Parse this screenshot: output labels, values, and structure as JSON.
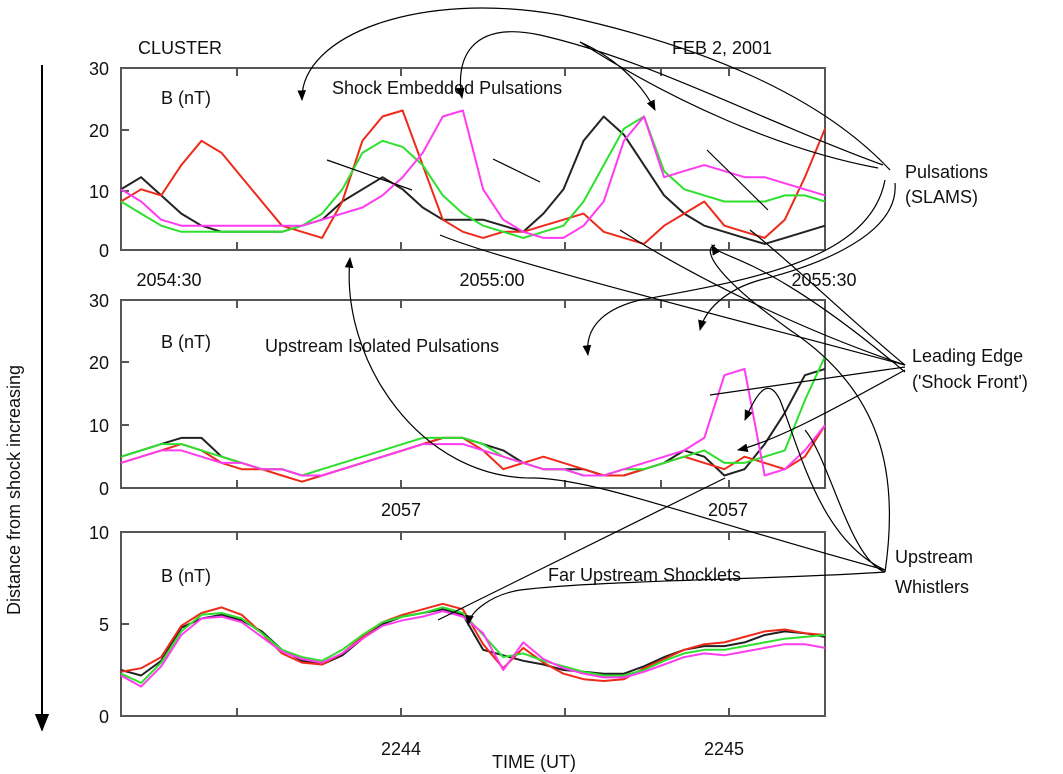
{
  "header": {
    "spacecraft": "CLUSTER",
    "date": "FEB 2, 2001"
  },
  "y_axis_label": "Distance from shock increasing",
  "x_axis_label": "TIME  (UT)",
  "colors": {
    "black": "#222222",
    "red": "#ee2a1a",
    "green": "#2ee02e",
    "magenta": "#ff3cf0"
  },
  "annotations": {
    "pulsations": [
      "Pulsations",
      "(SLAMS)"
    ],
    "leading_edge": [
      "Leading Edge",
      "('Shock Front')"
    ],
    "whistlers": [
      "Upstream",
      "Whistlers"
    ]
  },
  "chart_data": [
    {
      "type": "line",
      "panel_label": "B  (nT)",
      "title": "Shock Embedded Pulsations",
      "ylim": [
        0,
        30
      ],
      "yticks": [
        "30",
        "20",
        "10",
        "0"
      ],
      "xticklabels": [
        "2054:30",
        "2055:00",
        "2055:30"
      ],
      "x": [
        0,
        2,
        4,
        6,
        8,
        10,
        12,
        14,
        16,
        18,
        20,
        22,
        24,
        26,
        28,
        30,
        32,
        34,
        36,
        38,
        40,
        42,
        44,
        46,
        48,
        50,
        52,
        54,
        56,
        58,
        60,
        62,
        64,
        66,
        68,
        70
      ],
      "series": [
        {
          "color": "black",
          "values": [
            10,
            12,
            9,
            6,
            4,
            3,
            3,
            3,
            3,
            4,
            5,
            8,
            10,
            12,
            10,
            7,
            5,
            5,
            5,
            4,
            3,
            6,
            10,
            18,
            22,
            19,
            14,
            9,
            6,
            4,
            3,
            2,
            1,
            2,
            3,
            4
          ]
        },
        {
          "color": "red",
          "values": [
            8,
            10,
            9,
            14,
            18,
            16,
            12,
            8,
            4,
            3,
            2,
            8,
            18,
            22,
            23,
            14,
            5,
            3,
            2,
            3,
            3,
            4,
            5,
            6,
            3,
            2,
            1,
            4,
            6,
            8,
            4,
            3,
            2,
            5,
            12,
            20
          ]
        },
        {
          "color": "green",
          "values": [
            8,
            6,
            4,
            3,
            3,
            3,
            3,
            3,
            3,
            4,
            6,
            10,
            16,
            18,
            17,
            14,
            9,
            6,
            4,
            3,
            2,
            3,
            4,
            8,
            14,
            20,
            22,
            13,
            10,
            9,
            8,
            8,
            8,
            9,
            9,
            8
          ]
        },
        {
          "color": "magenta",
          "values": [
            10,
            8,
            5,
            4,
            4,
            4,
            4,
            4,
            4,
            4,
            5,
            6,
            7,
            9,
            12,
            16,
            22,
            23,
            10,
            5,
            3,
            2,
            2,
            4,
            8,
            18,
            22,
            12,
            13,
            14,
            13,
            12,
            12,
            11,
            10,
            9
          ]
        }
      ]
    },
    {
      "type": "line",
      "panel_label": "B  (nT)",
      "title": "Upstream Isolated Pulsations",
      "ylim": [
        0,
        30
      ],
      "yticks": [
        "30",
        "20",
        "10",
        "0"
      ],
      "xticklabels": [
        "2057",
        "2057"
      ],
      "x": [
        0,
        2,
        4,
        6,
        8,
        10,
        12,
        14,
        16,
        18,
        20,
        22,
        24,
        26,
        28,
        30,
        32,
        34,
        36,
        38,
        40,
        42,
        44,
        46,
        48,
        50,
        52,
        54,
        56,
        58,
        60,
        62,
        64,
        66,
        68,
        70
      ],
      "series": [
        {
          "color": "black",
          "values": [
            5,
            6,
            7,
            8,
            8,
            5,
            4,
            3,
            3,
            2,
            2,
            3,
            4,
            5,
            6,
            7,
            8,
            8,
            7,
            6,
            4,
            3,
            3,
            3,
            2,
            2,
            3,
            4,
            6,
            5,
            2,
            3,
            7,
            12,
            18,
            19
          ]
        },
        {
          "color": "red",
          "values": [
            4,
            5,
            6,
            7,
            6,
            4,
            3,
            3,
            2,
            1,
            2,
            3,
            4,
            5,
            6,
            7,
            8,
            8,
            6,
            3,
            4,
            5,
            4,
            3,
            2,
            2,
            3,
            4,
            5,
            4,
            3,
            5,
            4,
            3,
            5,
            10
          ]
        },
        {
          "color": "green",
          "values": [
            5,
            6,
            7,
            7,
            6,
            5,
            4,
            3,
            3,
            2,
            3,
            4,
            5,
            6,
            7,
            8,
            8,
            8,
            7,
            5,
            4,
            3,
            3,
            2,
            2,
            3,
            3,
            4,
            5,
            6,
            4,
            4,
            5,
            6,
            14,
            21
          ]
        },
        {
          "color": "magenta",
          "values": [
            4,
            5,
            6,
            6,
            5,
            4,
            4,
            3,
            3,
            2,
            2,
            3,
            4,
            5,
            6,
            7,
            7,
            7,
            6,
            5,
            4,
            3,
            3,
            2,
            2,
            3,
            4,
            5,
            6,
            8,
            18,
            19,
            2,
            3,
            6,
            10
          ]
        }
      ]
    },
    {
      "type": "line",
      "panel_label": "B  (nT)",
      "title": "Far Upstream Shocklets",
      "ylim": [
        0,
        10
      ],
      "yticks": [
        "10",
        "5",
        "0"
      ],
      "xticklabels": [
        "2244",
        "2245"
      ],
      "x": [
        0,
        2,
        4,
        6,
        8,
        10,
        12,
        14,
        16,
        18,
        20,
        22,
        24,
        26,
        28,
        30,
        32,
        34,
        36,
        38,
        40,
        42,
        44,
        46,
        48,
        50,
        52,
        54,
        56,
        58,
        60,
        62,
        64,
        66,
        68,
        70
      ],
      "series": [
        {
          "color": "black",
          "values": [
            2.5,
            2.2,
            3.0,
            4.8,
            5.3,
            5.5,
            5.2,
            4.6,
            3.6,
            3.0,
            2.8,
            3.3,
            4.2,
            5.0,
            5.4,
            5.6,
            5.8,
            5.5,
            3.6,
            3.3,
            3.0,
            2.8,
            2.5,
            2.4,
            2.3,
            2.3,
            2.7,
            3.2,
            3.6,
            3.8,
            3.8,
            4.0,
            4.4,
            4.6,
            4.5,
            4.3
          ]
        },
        {
          "color": "red",
          "values": [
            2.4,
            2.6,
            3.2,
            4.9,
            5.6,
            5.9,
            5.5,
            4.5,
            3.4,
            2.9,
            2.8,
            3.4,
            4.3,
            5.1,
            5.5,
            5.8,
            6.1,
            5.8,
            3.9,
            2.6,
            3.7,
            2.9,
            2.3,
            2.0,
            1.9,
            2.0,
            2.6,
            3.1,
            3.6,
            3.9,
            4.0,
            4.3,
            4.6,
            4.7,
            4.5,
            4.4
          ]
        },
        {
          "color": "green",
          "values": [
            2.3,
            1.8,
            2.9,
            4.6,
            5.5,
            5.6,
            5.3,
            4.5,
            3.6,
            3.2,
            3.0,
            3.6,
            4.4,
            5.1,
            5.4,
            5.6,
            5.9,
            5.6,
            4.4,
            3.2,
            3.4,
            3.0,
            2.7,
            2.4,
            2.2,
            2.2,
            2.5,
            3.0,
            3.4,
            3.6,
            3.6,
            3.8,
            4.0,
            4.2,
            4.3,
            4.4
          ]
        },
        {
          "color": "magenta",
          "values": [
            2.2,
            1.6,
            2.7,
            4.4,
            5.3,
            5.4,
            5.1,
            4.3,
            3.5,
            3.1,
            2.9,
            3.4,
            4.2,
            4.9,
            5.2,
            5.4,
            5.7,
            5.4,
            4.5,
            2.5,
            4.0,
            3.1,
            2.6,
            2.3,
            2.1,
            2.1,
            2.4,
            2.8,
            3.2,
            3.4,
            3.3,
            3.5,
            3.7,
            3.9,
            3.9,
            3.7
          ]
        }
      ]
    }
  ]
}
